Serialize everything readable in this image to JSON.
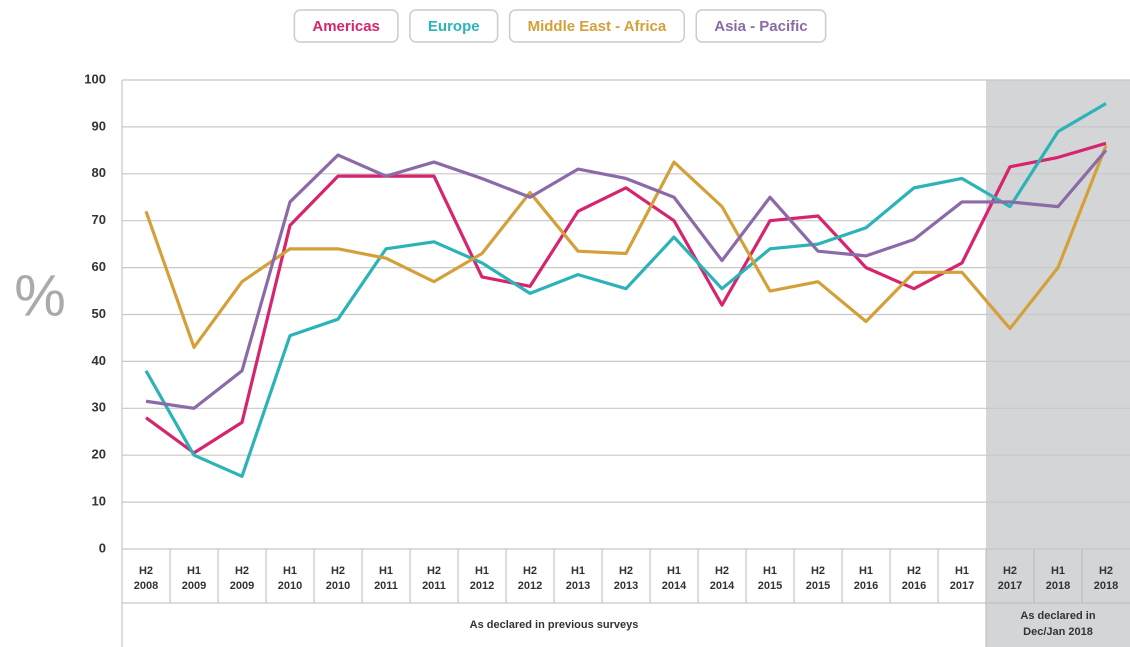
{
  "chart_data": {
    "type": "line",
    "ylabel": "%",
    "categories": [
      [
        "H2",
        "2008"
      ],
      [
        "H1",
        "2009"
      ],
      [
        "H2",
        "2009"
      ],
      [
        "H1",
        "2010"
      ],
      [
        "H2",
        "2010"
      ],
      [
        "H1",
        "2011"
      ],
      [
        "H2",
        "2011"
      ],
      [
        "H1",
        "2012"
      ],
      [
        "H2",
        "2012"
      ],
      [
        "H1",
        "2013"
      ],
      [
        "H2",
        "2013"
      ],
      [
        "H1",
        "2014"
      ],
      [
        "H2",
        "2014"
      ],
      [
        "H1",
        "2015"
      ],
      [
        "H2",
        "2015"
      ],
      [
        "H1",
        "2016"
      ],
      [
        "H2",
        "2016"
      ],
      [
        "H1",
        "2017"
      ],
      [
        "H2",
        "2017"
      ],
      [
        "H1",
        "2018"
      ],
      [
        "H2",
        "2018"
      ]
    ],
    "series": [
      {
        "name": "Americas",
        "color": "#d6246e",
        "values": [
          28,
          20.5,
          27,
          69,
          79.5,
          79.5,
          79.5,
          58,
          56,
          72,
          77,
          70,
          52,
          70,
          71,
          60,
          55.5,
          61,
          81.5,
          83.5,
          86.5
        ]
      },
      {
        "name": "Europe",
        "color": "#2bb3b8",
        "values": [
          38,
          20,
          15.5,
          45.5,
          49,
          64,
          65.5,
          61,
          54.5,
          58.5,
          55.5,
          66.5,
          55.5,
          64,
          65,
          68.5,
          77,
          79,
          73,
          89,
          95
        ]
      },
      {
        "name": "Middle East - Africa",
        "color": "#d4a03a",
        "values": [
          72,
          43,
          57,
          64,
          64,
          62,
          57,
          63,
          76,
          63.5,
          63,
          82.5,
          73,
          55,
          57,
          48.5,
          59,
          59,
          47,
          60,
          86
        ]
      },
      {
        "name": "Asia - Pacific",
        "color": "#8b6aa8",
        "values": [
          31.5,
          30,
          38,
          74,
          84,
          79.5,
          82.5,
          79,
          75,
          81,
          79,
          75,
          61.5,
          75,
          63.5,
          62.5,
          66,
          74,
          74,
          73,
          85
        ]
      }
    ],
    "ylim": [
      0,
      100
    ],
    "yticks": [
      0,
      10,
      20,
      30,
      40,
      50,
      60,
      70,
      80,
      90,
      100
    ],
    "grid": true,
    "legend": "top",
    "annotations": [
      "As declared in previous surveys",
      "As declared in",
      "Dec/Jan 2018"
    ]
  }
}
